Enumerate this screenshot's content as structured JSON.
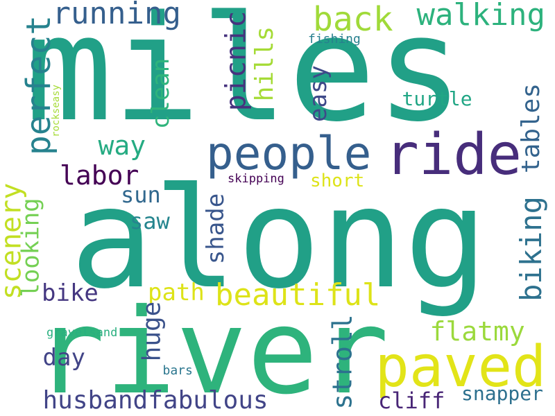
{
  "words": [
    {
      "id": "miles",
      "text": "miles",
      "color": "#21a087"
    },
    {
      "id": "along",
      "text": "along",
      "color": "#21a087"
    },
    {
      "id": "river",
      "text": "river",
      "color": "#2eb37c"
    },
    {
      "id": "paved",
      "text": "paved",
      "color": "#e2e418"
    },
    {
      "id": "people",
      "text": "people",
      "color": "#355f8d"
    },
    {
      "id": "ride",
      "text": "ride",
      "color": "#472d7b"
    },
    {
      "id": "running",
      "text": "running",
      "color": "#355f8d"
    },
    {
      "id": "back",
      "text": "back",
      "color": "#a0da39"
    },
    {
      "id": "walking",
      "text": "walking",
      "color": "#2db27d"
    },
    {
      "id": "perfect",
      "text": "perfect",
      "color": "#26828e"
    },
    {
      "id": "picnic",
      "text": "picnic",
      "color": "#46327e"
    },
    {
      "id": "hills",
      "text": "hills",
      "color": "#a5db36"
    },
    {
      "id": "easy",
      "text": "easy",
      "color": "#3e4989"
    },
    {
      "id": "fishing",
      "text": "fishing",
      "color": "#27808e"
    },
    {
      "id": "turtle",
      "text": "turtle",
      "color": "#21a685"
    },
    {
      "id": "tables",
      "text": "tables",
      "color": "#33638d"
    },
    {
      "id": "clean",
      "text": "clean",
      "color": "#2fb47c"
    },
    {
      "id": "way",
      "text": "way",
      "color": "#25ab82"
    },
    {
      "id": "rockseasy",
      "text": "rockseasy",
      "color": "#a5db36"
    },
    {
      "id": "labor",
      "text": "labor",
      "color": "#440154"
    },
    {
      "id": "skipping",
      "text": "skipping",
      "color": "#440154"
    },
    {
      "id": "short",
      "text": "short",
      "color": "#dde318"
    },
    {
      "id": "sun",
      "text": "sun",
      "color": "#31688e"
    },
    {
      "id": "saw",
      "text": "saw",
      "color": "#25858e"
    },
    {
      "id": "scenery",
      "text": "scenery",
      "color": "#c2df23"
    },
    {
      "id": "looking",
      "text": "looking",
      "color": "#75d054"
    },
    {
      "id": "shade",
      "text": "shade",
      "color": "#39568c"
    },
    {
      "id": "biking",
      "text": "biking",
      "color": "#2d718e"
    },
    {
      "id": "bike",
      "text": "bike",
      "color": "#453781"
    },
    {
      "id": "path",
      "text": "path",
      "color": "#dde318"
    },
    {
      "id": "beautiful",
      "text": "beautiful",
      "color": "#dde318"
    },
    {
      "id": "flatmy",
      "text": "flatmy",
      "color": "#9bd93c"
    },
    {
      "id": "huge",
      "text": "huge",
      "color": "#3b528b"
    },
    {
      "id": "stroll",
      "text": "stroll",
      "color": "#2c728e"
    },
    {
      "id": "gravelsand",
      "text": "gravelsand",
      "color": "#29af7f"
    },
    {
      "id": "day",
      "text": "day",
      "color": "#414487"
    },
    {
      "id": "bars",
      "text": "bars",
      "color": "#2a768e"
    },
    {
      "id": "husbandfabulous",
      "text": "husbandfabulous",
      "color": "#414487"
    },
    {
      "id": "cliff",
      "text": "cliff",
      "color": "#482576"
    },
    {
      "id": "snapper",
      "text": "snapper",
      "color": "#2d708e"
    }
  ]
}
